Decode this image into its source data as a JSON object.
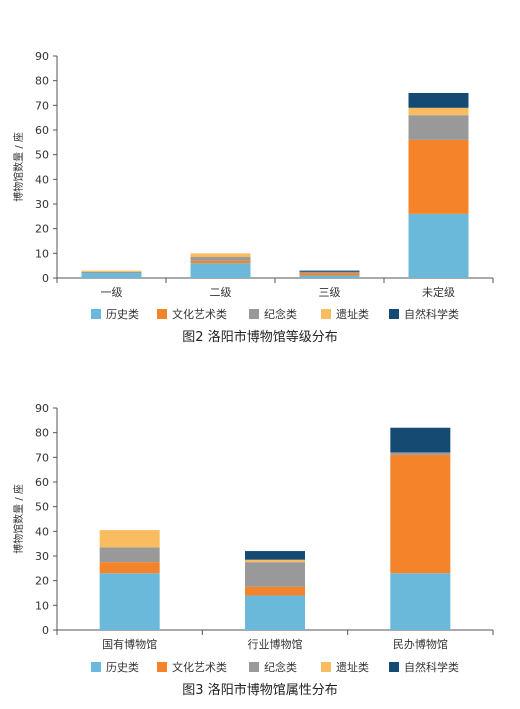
{
  "chart_data": [
    {
      "type": "bar",
      "stacked": true,
      "title": "图2 洛阳市博物馆等级分布",
      "ylabel": "博物馆数量 / 座",
      "ylim": [
        0,
        90
      ],
      "yticks": [
        0,
        10,
        20,
        30,
        40,
        50,
        60,
        70,
        80,
        90
      ],
      "categories": [
        "一级",
        "二级",
        "三级",
        "未定级"
      ],
      "series": [
        {
          "name": "历史类",
          "color": "#6ab9da",
          "values": [
            2,
            6,
            1,
            26
          ]
        },
        {
          "name": "文化艺术类",
          "color": "#f4832a",
          "values": [
            0,
            1,
            1,
            30
          ]
        },
        {
          "name": "纪念类",
          "color": "#999999",
          "values": [
            0.5,
            1.5,
            0.5,
            10
          ]
        },
        {
          "name": "遗址类",
          "color": "#f9bc60",
          "values": [
            0.5,
            1.5,
            0,
            3
          ]
        },
        {
          "name": "自然科学类",
          "color": "#154a73",
          "values": [
            0,
            0,
            0.5,
            6
          ]
        }
      ],
      "legend_position": "bottom",
      "grid": false
    },
    {
      "type": "bar",
      "stacked": true,
      "title": "图3 洛阳市博物馆属性分布",
      "ylabel": "博物馆数量 / 座",
      "ylim": [
        0,
        90
      ],
      "yticks": [
        0,
        10,
        20,
        30,
        40,
        50,
        60,
        70,
        80,
        90
      ],
      "categories": [
        "国有博物馆",
        "行业博物馆",
        "民办博物馆"
      ],
      "series": [
        {
          "name": "历史类",
          "color": "#6ab9da",
          "values": [
            23,
            14,
            23
          ]
        },
        {
          "name": "文化艺术类",
          "color": "#f4832a",
          "values": [
            4.5,
            3.5,
            48
          ]
        },
        {
          "name": "纪念类",
          "color": "#999999",
          "values": [
            6,
            10,
            1
          ]
        },
        {
          "name": "遗址类",
          "color": "#f9bc60",
          "values": [
            7,
            1,
            0
          ]
        },
        {
          "name": "自然科学类",
          "color": "#154a73",
          "values": [
            0,
            3.5,
            10
          ]
        }
      ],
      "legend_position": "bottom",
      "grid": false
    }
  ]
}
